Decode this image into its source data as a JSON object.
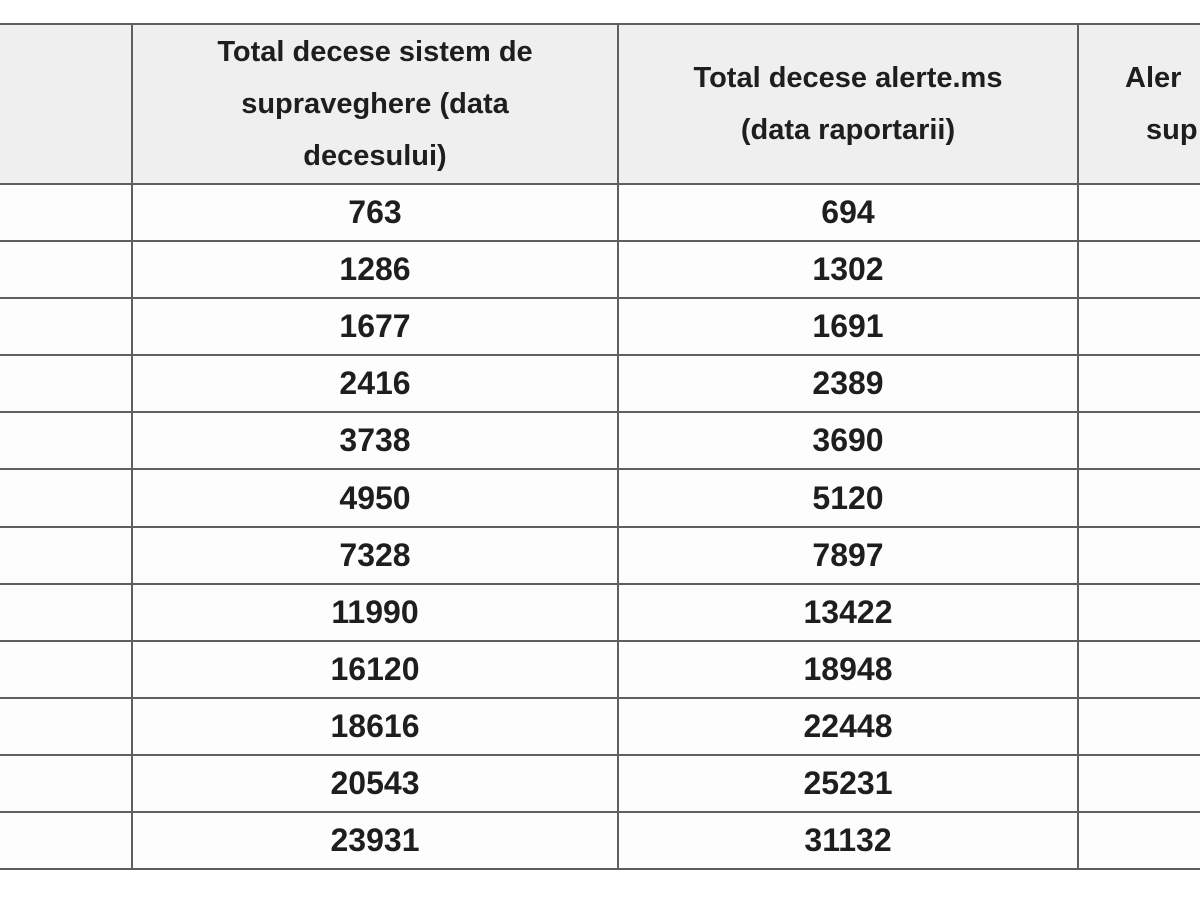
{
  "table": {
    "headers": {
      "row_label": "",
      "sistem_lines": [
        "Total decese sistem de",
        "supraveghere (data",
        "decesului)"
      ],
      "alerte_lines": [
        "Total decese alerte.ms",
        "(data raportarii)"
      ],
      "right_partial_lines": [
        "Aler",
        "sup"
      ]
    },
    "rows": [
      {
        "sistem": "763",
        "alerte": "694"
      },
      {
        "sistem": "1286",
        "alerte": "1302"
      },
      {
        "sistem": "1677",
        "alerte": "1691"
      },
      {
        "sistem": "2416",
        "alerte": "2389"
      },
      {
        "sistem": "3738",
        "alerte": "3690"
      },
      {
        "sistem": "4950",
        "alerte": "5120"
      },
      {
        "sistem": "7328",
        "alerte": "7897"
      },
      {
        "sistem": "11990",
        "alerte": "13422"
      },
      {
        "sistem": "16120",
        "alerte": "18948"
      },
      {
        "sistem": "18616",
        "alerte": "22448"
      },
      {
        "sistem": "20543",
        "alerte": "25231"
      },
      {
        "sistem": "23931",
        "alerte": "31132"
      }
    ]
  },
  "colors": {
    "page_bg": "#ffffff",
    "header_bg": "#f0efef",
    "cell_bg": "#fdfdfd",
    "border": "#5f5f5f",
    "text": "#1e1e1e"
  }
}
